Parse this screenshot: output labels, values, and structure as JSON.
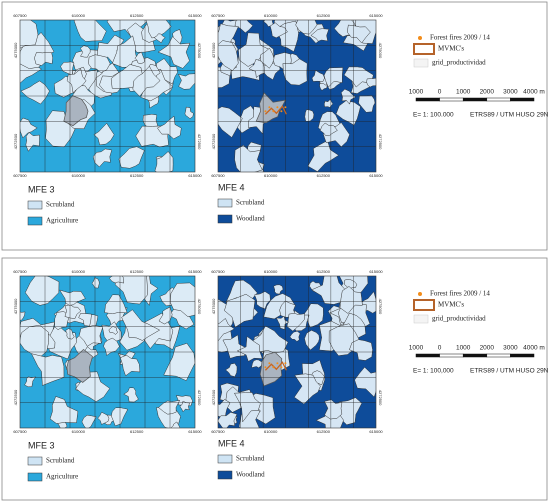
{
  "panels": [
    {
      "maps": [
        {
          "x_ticks": [
            "607500",
            "610000",
            "612500",
            "615000"
          ],
          "y_ticks": [
            "4275000",
            "4272500"
          ]
        },
        {
          "x_ticks": [
            "607500",
            "610000",
            "612500",
            "615000"
          ],
          "y_ticks": [
            "4275000",
            "4272500"
          ]
        }
      ],
      "mfe3": {
        "title": "MFE 3",
        "items": [
          "Scrubland",
          "Agriculture"
        ]
      },
      "mfe4": {
        "title": "MFE 4",
        "items": [
          "Scrubland",
          "Woodland"
        ]
      },
      "legend": [
        "Forest fires 2009 / 14",
        "MVMC's",
        "grid_productividad"
      ],
      "scale": {
        "labels": [
          "1000",
          "0",
          "1000",
          "2000",
          "3000",
          "4000 m"
        ],
        "ratio": "E= 1: 100.000",
        "crs": "ETRS89 / UTM HUSO 29N"
      }
    },
    {
      "maps": [
        {
          "x_ticks": [
            "607500",
            "610000",
            "612500",
            "615000"
          ],
          "y_ticks": [
            "4275000",
            "4272500"
          ]
        },
        {
          "x_ticks": [
            "607500",
            "610000",
            "612500",
            "615000"
          ],
          "y_ticks": [
            "4275000",
            "4272500"
          ]
        }
      ],
      "mfe3": {
        "title": "MFE 3",
        "items": [
          "Scrubland",
          "Agriculture"
        ]
      },
      "mfe4": {
        "title": "MFE 4",
        "items": [
          "Scrubland",
          "Woodland"
        ]
      },
      "legend": [
        "Forest fires 2009 / 14",
        "MVMC's",
        "grid_productividad"
      ],
      "scale": {
        "labels": [
          "1000",
          "0",
          "1000",
          "2000",
          "3000",
          "4000 m"
        ],
        "ratio": "E= 1: 100,000",
        "crs": "ETRS89 / UTM HUSO 29N"
      }
    }
  ]
}
